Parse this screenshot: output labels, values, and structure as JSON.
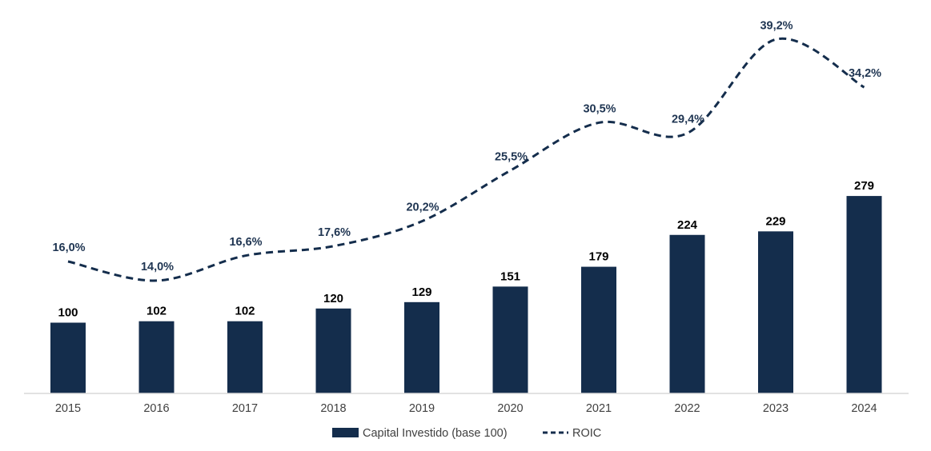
{
  "chart_data": {
    "type": "bar",
    "categories": [
      "2015",
      "2016",
      "2017",
      "2018",
      "2019",
      "2020",
      "2021",
      "2022",
      "2023",
      "2024"
    ],
    "series": [
      {
        "name": "Capital Investido (base 100)",
        "type": "bar",
        "values": [
          100,
          102,
          102,
          120,
          129,
          151,
          179,
          224,
          229,
          279
        ],
        "labels": [
          "100",
          "102",
          "102",
          "120",
          "129",
          "151",
          "179",
          "224",
          "229",
          "279"
        ]
      },
      {
        "name": "ROIC",
        "type": "line",
        "style": "dashed",
        "values": [
          16.0,
          14.0,
          16.6,
          17.6,
          20.2,
          25.5,
          30.5,
          29.4,
          39.2,
          34.2
        ],
        "labels": [
          "16,0%",
          "14,0%",
          "16,6%",
          "17,6%",
          "20,2%",
          "25,5%",
          "30,5%",
          "29,4%",
          "39,2%",
          "34,2%"
        ]
      }
    ],
    "title": "",
    "xlabel": "",
    "ylabel": "",
    "grid": false,
    "legend_position": "bottom-center",
    "colors": {
      "bar": "#142d4c",
      "line": "#142d4c",
      "axis": "#d9d9d9"
    }
  },
  "legend": {
    "bar_label": "Capital Investido (base 100)",
    "line_label": "ROIC"
  }
}
